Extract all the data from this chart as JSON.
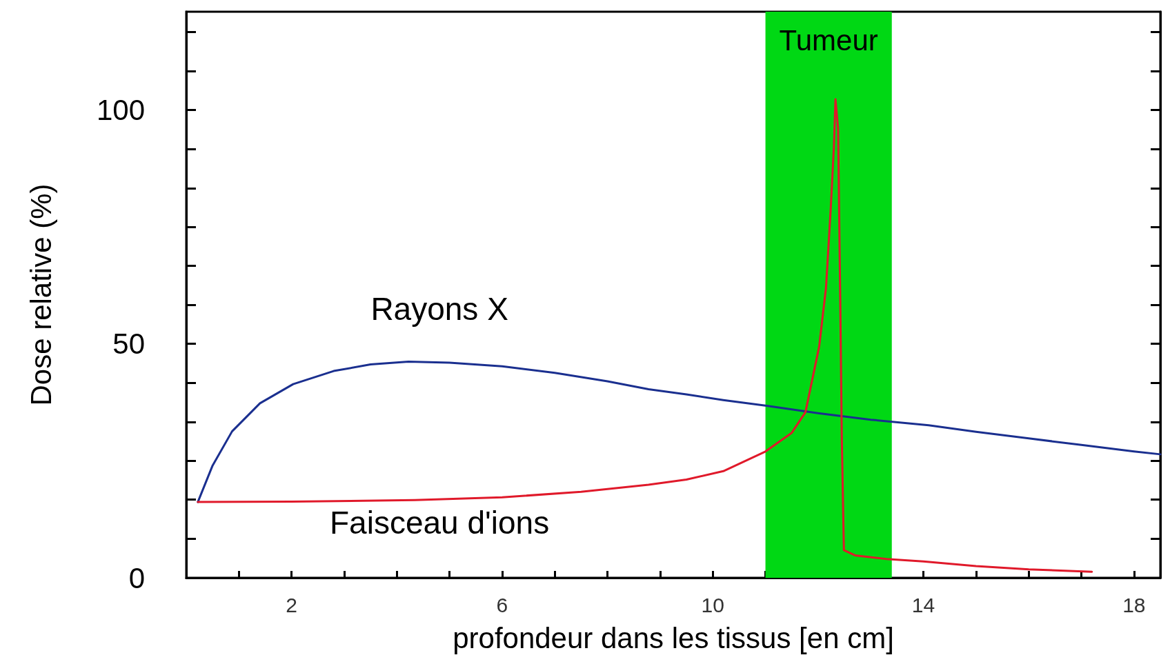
{
  "chart_data": {
    "type": "line",
    "xlabel": "profondeur dans les tissus [en cm]",
    "ylabel": "Dose relative (%)",
    "xlim": [
      0,
      18.5
    ],
    "xticks": [
      {
        "value": 0,
        "label": null
      },
      {
        "value": 1,
        "label": null
      },
      2,
      {
        "value": 3,
        "label": null
      },
      {
        "value": 4,
        "label": null
      },
      {
        "value": 5,
        "label": null
      },
      6,
      {
        "value": 7,
        "label": null
      },
      {
        "value": 8,
        "label": null
      },
      {
        "value": 9,
        "label": null
      },
      10,
      {
        "value": 11,
        "label": null
      },
      {
        "value": 12,
        "label": null
      },
      {
        "value": 13,
        "label": null
      },
      14,
      {
        "value": 15,
        "label": null
      },
      {
        "value": 16,
        "label": null
      },
      {
        "value": 17,
        "label": null
      },
      18
    ],
    "ylim": [
      0,
      121
    ],
    "yticks": [
      0,
      {
        "value": 8.3,
        "label": null
      },
      {
        "value": 16.7,
        "label": null
      },
      {
        "value": 25,
        "label": null
      },
      {
        "value": 33.3,
        "label": null
      },
      {
        "value": 41.7,
        "label": null
      },
      50,
      {
        "value": 58.3,
        "label": null
      },
      {
        "value": 66.7,
        "label": null
      },
      {
        "value": 75,
        "label": null
      },
      {
        "value": 83.3,
        "label": null
      },
      {
        "value": 91.7,
        "label": null
      },
      100,
      {
        "value": 108.3,
        "label": null
      },
      {
        "value": 116.7,
        "label": null
      }
    ],
    "grid": false,
    "legend": false,
    "marker": "none",
    "line_style": "solid",
    "bands": [
      {
        "axis": "x",
        "from": 11.0,
        "to": 13.4,
        "label": "Tumeur",
        "color": "#00d814"
      }
    ],
    "series": [
      {
        "name": "Rayons X",
        "color": "#1a2f8f",
        "x": [
          0.22,
          0.5,
          0.87,
          1.4,
          2.03,
          2.8,
          3.5,
          4.22,
          5,
          6,
          7,
          8,
          8.78,
          9.5,
          10.2,
          11,
          12,
          13,
          14.1,
          15,
          16,
          17,
          18,
          18.5
        ],
        "values": [
          16.2,
          24,
          31.3,
          37.3,
          41.4,
          44.2,
          45.6,
          46.2,
          46,
          45.2,
          43.8,
          42,
          40.3,
          39.2,
          38,
          36.8,
          35.2,
          33.8,
          32.6,
          31.2,
          29.8,
          28.4,
          27,
          26.4
        ]
      },
      {
        "name": "Faisceau d'ions",
        "color": "#e0192a",
        "x": [
          0.22,
          2,
          4.34,
          6,
          7.5,
          8.78,
          9.5,
          10.2,
          11,
          11.5,
          11.76,
          12.02,
          12.15,
          12.24,
          12.3,
          12.33,
          12.38,
          12.42,
          12.45,
          12.49,
          12.7,
          13.3,
          14,
          15,
          16,
          17.2
        ],
        "values": [
          16.2,
          16.3,
          16.6,
          17.2,
          18.4,
          19.9,
          21,
          22.8,
          27,
          31,
          35.4,
          49.4,
          62,
          78.9,
          92,
          102.3,
          96,
          60,
          30,
          5.9,
          4.8,
          4,
          3.5,
          2.5,
          1.8,
          1.3
        ]
      }
    ]
  }
}
